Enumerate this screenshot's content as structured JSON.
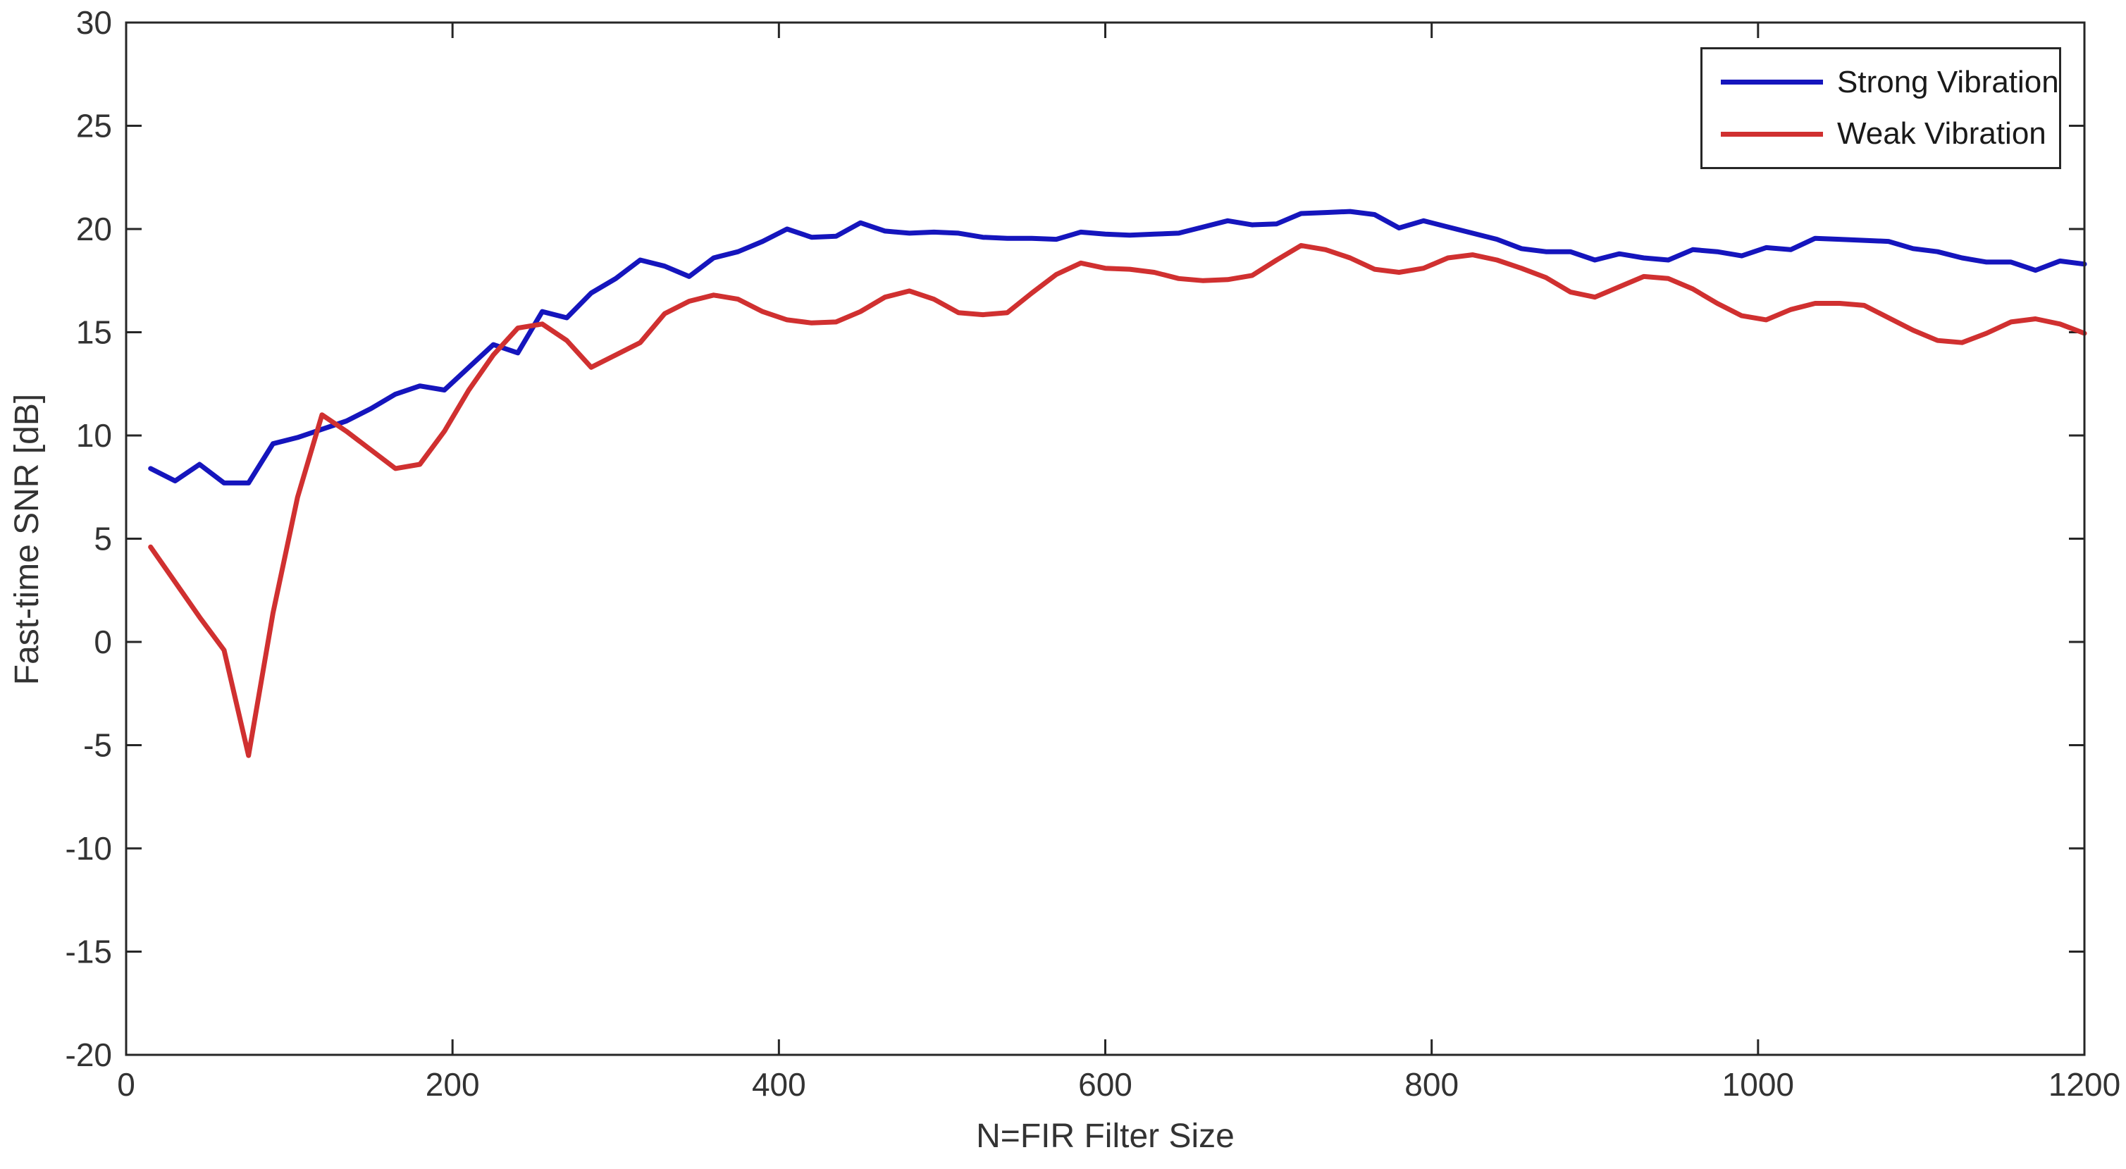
{
  "figure": {
    "background": "#ffffff",
    "axis_color": "#262626",
    "text_color": "#333333"
  },
  "chart_data": {
    "type": "line",
    "title": "",
    "xlabel": "N=FIR Filter Size",
    "ylabel": "Fast-time SNR [dB]",
    "xlim": [
      0,
      1200
    ],
    "ylim": [
      -20,
      30
    ],
    "xticks": [
      0,
      200,
      400,
      600,
      800,
      1000,
      1200
    ],
    "yticks": [
      -20,
      -15,
      -10,
      -5,
      0,
      5,
      10,
      15,
      20,
      25,
      30
    ],
    "grid": false,
    "legend_position": "top-right",
    "line_width": 7,
    "x": [
      15,
      30,
      45,
      60,
      75,
      90,
      105,
      120,
      135,
      150,
      165,
      180,
      195,
      210,
      225,
      240,
      255,
      270,
      285,
      300,
      315,
      330,
      345,
      360,
      375,
      390,
      405,
      420,
      435,
      450,
      465,
      480,
      495,
      510,
      525,
      540,
      555,
      570,
      585,
      600,
      615,
      630,
      645,
      660,
      675,
      690,
      705,
      720,
      735,
      750,
      765,
      780,
      795,
      810,
      825,
      840,
      855,
      870,
      885,
      900,
      915,
      930,
      945,
      960,
      975,
      990,
      1005,
      1020,
      1035,
      1050,
      1065,
      1080,
      1095,
      1110,
      1125,
      1140,
      1155,
      1170,
      1185,
      1200
    ],
    "series": [
      {
        "name": "Strong Vibration",
        "color": "#1515bd",
        "values": [
          8.4,
          7.8,
          8.6,
          7.7,
          7.7,
          9.6,
          9.9,
          10.3,
          10.7,
          11.3,
          12.0,
          12.4,
          12.2,
          13.3,
          14.4,
          14.0,
          16.0,
          15.7,
          16.9,
          17.6,
          18.5,
          18.2,
          17.7,
          18.6,
          18.9,
          19.4,
          20.0,
          19.6,
          19.65,
          20.3,
          19.9,
          19.8,
          19.85,
          19.8,
          19.6,
          19.55,
          19.55,
          19.5,
          19.85,
          19.75,
          19.7,
          19.75,
          19.8,
          20.1,
          20.4,
          20.2,
          20.25,
          20.75,
          20.8,
          20.85,
          20.7,
          20.05,
          20.4,
          20.1,
          19.8,
          19.5,
          19.05,
          18.9,
          18.9,
          18.5,
          18.8,
          18.6,
          18.5,
          19.0,
          18.9,
          18.7,
          19.1,
          19.0,
          19.55,
          19.5,
          19.45,
          19.4,
          19.05,
          18.9,
          18.6,
          18.4,
          18.4,
          18.0,
          18.45,
          18.3
        ]
      },
      {
        "name": "Weak Vibration",
        "color": "#d03030",
        "values": [
          4.6,
          2.9,
          1.2,
          -0.4,
          -5.5,
          1.4,
          7.0,
          11.0,
          10.2,
          9.3,
          8.4,
          8.6,
          10.2,
          12.2,
          13.9,
          15.2,
          15.4,
          14.6,
          13.3,
          13.9,
          14.5,
          15.9,
          16.5,
          16.8,
          16.6,
          16.0,
          15.6,
          15.45,
          15.5,
          16.0,
          16.7,
          17.0,
          16.6,
          15.95,
          15.85,
          15.95,
          16.9,
          17.8,
          18.35,
          18.1,
          18.05,
          17.9,
          17.6,
          17.5,
          17.55,
          17.75,
          18.5,
          19.2,
          19.0,
          18.6,
          18.05,
          17.9,
          18.1,
          18.6,
          18.75,
          18.5,
          18.1,
          17.65,
          16.95,
          16.7,
          17.2,
          17.7,
          17.6,
          17.1,
          16.4,
          15.8,
          15.6,
          16.1,
          16.4,
          16.4,
          16.3,
          15.7,
          15.1,
          14.6,
          14.5,
          14.95,
          15.5,
          15.65,
          15.4,
          14.95
        ]
      }
    ]
  }
}
